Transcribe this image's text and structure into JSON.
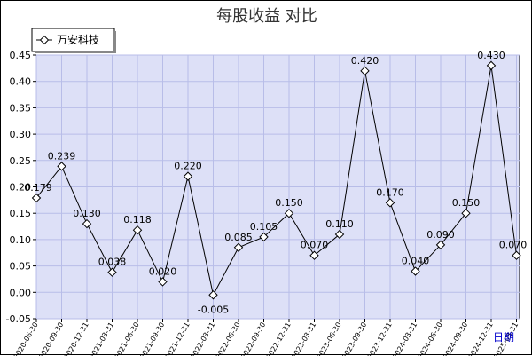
{
  "chart_data": {
    "type": "line",
    "title": "每股收益 对比",
    "xlabel": "日期",
    "ylabel": "",
    "ylim": [
      -0.05,
      0.45
    ],
    "yticks": [
      "0.45",
      "0.40",
      "0.35",
      "0.30",
      "0.25",
      "0.20",
      "0.15",
      "0.10",
      "0.05",
      "0.00",
      "-0.05"
    ],
    "grid": true,
    "legend_position": "top-left",
    "categories": [
      "2020-06-30",
      "2020-09-30",
      "2020-12-31",
      "2021-03-31",
      "2021-06-30",
      "2021-09-30",
      "2021-12-31",
      "2022-03-31",
      "2022-06-30",
      "2022-09-30",
      "2022-12-31",
      "2023-03-31",
      "2023-06-30",
      "2023-09-30",
      "2023-12-31",
      "2024-03-31",
      "2024-06-30",
      "2024-09-30",
      "2024-12-31",
      "2025-03-31"
    ],
    "series": [
      {
        "name": "万安科技",
        "values": [
          0.179,
          0.239,
          0.13,
          0.038,
          0.118,
          0.02,
          0.22,
          -0.005,
          0.085,
          0.105,
          0.15,
          0.07,
          0.11,
          0.42,
          0.17,
          0.04,
          0.09,
          0.15,
          0.43,
          0.07
        ],
        "labels": [
          "0.179",
          "0.239",
          "0.130",
          "0.038",
          "0.118",
          "0.020",
          "0.220",
          "-0.005",
          "0.085",
          "0.105",
          "0.150",
          "0.070",
          "0.110",
          "0.420",
          "0.170",
          "0.040",
          "0.090",
          "0.150",
          "0.430",
          "0.070"
        ]
      }
    ],
    "colors": {
      "plot_background": "#dde0f7",
      "grid": "#b8bde8",
      "line": "#000000",
      "axis_name": "#0000cc"
    }
  }
}
